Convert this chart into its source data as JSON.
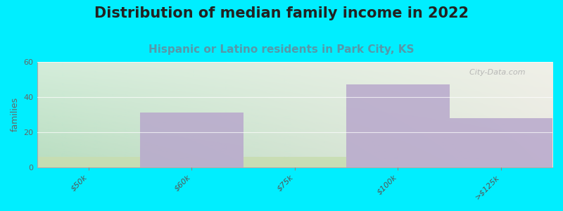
{
  "title": "Distribution of median family income in 2022",
  "subtitle": "Hispanic or Latino residents in Park City, KS",
  "categories": [
    "$50k",
    "$60k",
    "$75k",
    "$100k",
    ">$125k"
  ],
  "green_values": [
    6,
    0,
    6,
    0,
    0
  ],
  "purple_values": [
    0,
    31,
    0,
    47,
    28
  ],
  "ylim": [
    0,
    60
  ],
  "yticks": [
    0,
    20,
    40,
    60
  ],
  "bar_width": 1.0,
  "green_color": "#c8ddb0",
  "purple_color": "#b8a8cc",
  "bg_color": "#00eeff",
  "plot_bg_top_left": "#d4edda",
  "plot_bg_top_right": "#f0f0e8",
  "plot_bg_bottom_left": "#b8ddc0",
  "plot_bg_bottom_right": "#e8e8e0",
  "ylabel": "families",
  "watermark": "  City-Data.com",
  "title_fontsize": 15,
  "subtitle_fontsize": 11,
  "subtitle_color": "#5599aa"
}
